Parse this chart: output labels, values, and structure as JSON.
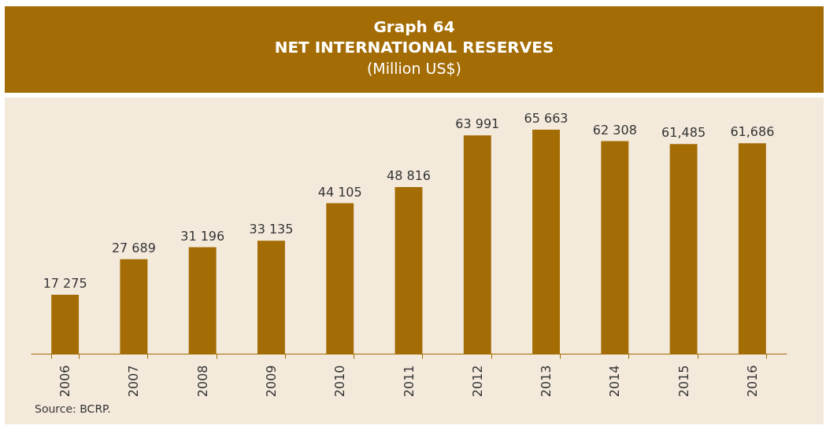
{
  "chart_data": {
    "type": "bar",
    "title": "Graph 64",
    "subtitle": "NET INTERNATIONAL RESERVES",
    "annotations": [
      "(Million US$)",
      "Source: BCRP."
    ],
    "categories": [
      "2006",
      "2007",
      "2008",
      "2009",
      "2010",
      "2011",
      "2012",
      "2013",
      "2014",
      "2015",
      "2016"
    ],
    "values": [
      17275,
      27689,
      31196,
      33135,
      44105,
      48816,
      63991,
      65663,
      62308,
      61485,
      61686
    ],
    "value_labels": [
      "17 275",
      "27 689",
      "31 196",
      "33 135",
      "44 105",
      "48 816",
      "63 991",
      "65 663",
      "62 308",
      "61,485",
      "61,686"
    ],
    "color": "#a36c04",
    "grid": false
  }
}
